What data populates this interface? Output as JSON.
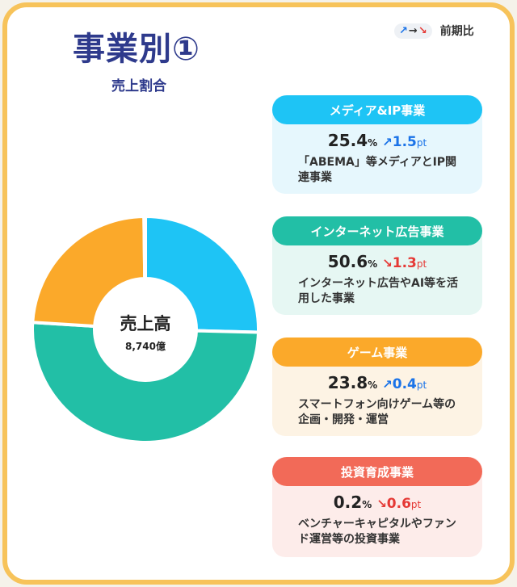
{
  "title": "事業別①",
  "subtitle": "売上割合",
  "legend": {
    "arrows": [
      "↗",
      "→",
      "↘"
    ],
    "label": "前期比"
  },
  "colors": {
    "frame": "#f7c35a",
    "navy": "#2e3a8c",
    "media": "#1ec4f5",
    "internet": "#22bfa6",
    "game": "#fba92a",
    "invest": "#f26a58",
    "up": "#1a73e8",
    "down": "#e53935"
  },
  "chart_data": {
    "type": "pie",
    "center_label": "売上高",
    "center_value": "8,740億",
    "categories": [
      "メディア&IP事業",
      "インターネット広告事業",
      "ゲーム事業",
      "投資育成事業"
    ],
    "values": [
      25.4,
      50.6,
      23.8,
      0.2
    ],
    "unit": "%",
    "colors": [
      "#1ec4f5",
      "#22bfa6",
      "#fba92a",
      "#f26a58"
    ]
  },
  "segments": [
    {
      "name": "メディア&IP事業",
      "share": "25.4",
      "pct": "%",
      "trend": "up",
      "arrow": "↗",
      "delta": "1.5",
      "unit": "pt",
      "description": "「ABEMA」等メディアとIP関連事業",
      "color": "#1ec4f5",
      "bg": "#e6f7fd"
    },
    {
      "name": "インターネット広告事業",
      "share": "50.6",
      "pct": "%",
      "trend": "down",
      "arrow": "↘",
      "delta": "1.3",
      "unit": "pt",
      "description": "インターネット広告やAI等を活用した事業",
      "color": "#22bfa6",
      "bg": "#e6f7f3"
    },
    {
      "name": "ゲーム事業",
      "share": "23.8",
      "pct": "%",
      "trend": "up",
      "arrow": "↗",
      "delta": "0.4",
      "unit": "pt",
      "description": "スマートフォン向けゲーム等の企画・開発・運営",
      "color": "#fba92a",
      "bg": "#fdf3e4"
    },
    {
      "name": "投資育成事業",
      "share": "0.2",
      "pct": "%",
      "trend": "down",
      "arrow": "↘",
      "delta": "0.6",
      "unit": "pt",
      "description": "ベンチャーキャピタルやファンド運営等の投資事業",
      "color": "#f26a58",
      "bg": "#fdecea"
    }
  ]
}
